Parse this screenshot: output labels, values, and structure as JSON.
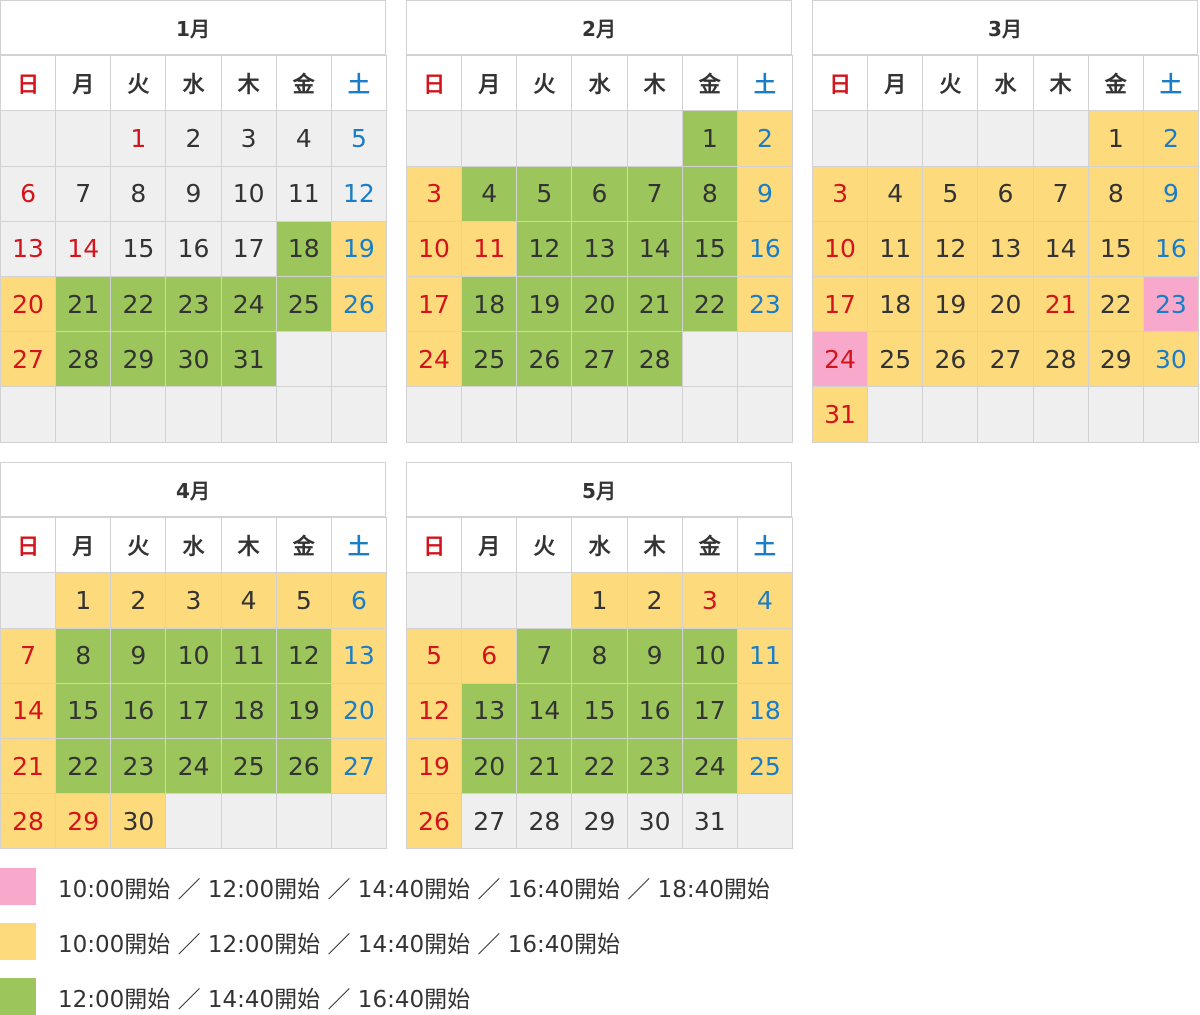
{
  "palette": {
    "gray": "#efefef",
    "yellow": "#fdda7c",
    "green": "#9cc65c",
    "pink": "#f7a8cb",
    "red": "#d2141c",
    "blue": "#1b7dc6",
    "dark": "#333333"
  },
  "weekdays": [
    "日",
    "月",
    "火",
    "水",
    "木",
    "金",
    "土"
  ],
  "weekday_fg": [
    "red",
    "dark",
    "dark",
    "dark",
    "dark",
    "dark",
    "blue"
  ],
  "months": [
    {
      "title": "1月",
      "weeks": [
        [
          null,
          null,
          [
            1,
            "gray",
            "red"
          ],
          [
            2,
            "gray",
            "dark"
          ],
          [
            3,
            "gray",
            "dark"
          ],
          [
            4,
            "gray",
            "dark"
          ],
          [
            5,
            "gray",
            "blue"
          ]
        ],
        [
          [
            6,
            "gray",
            "red"
          ],
          [
            7,
            "gray",
            "dark"
          ],
          [
            8,
            "gray",
            "dark"
          ],
          [
            9,
            "gray",
            "dark"
          ],
          [
            10,
            "gray",
            "dark"
          ],
          [
            11,
            "gray",
            "dark"
          ],
          [
            12,
            "gray",
            "blue"
          ]
        ],
        [
          [
            13,
            "gray",
            "red"
          ],
          [
            14,
            "gray",
            "red"
          ],
          [
            15,
            "gray",
            "dark"
          ],
          [
            16,
            "gray",
            "dark"
          ],
          [
            17,
            "gray",
            "dark"
          ],
          [
            18,
            "green",
            "dark"
          ],
          [
            19,
            "yellow",
            "blue"
          ]
        ],
        [
          [
            20,
            "yellow",
            "red"
          ],
          [
            21,
            "green",
            "dark"
          ],
          [
            22,
            "green",
            "dark"
          ],
          [
            23,
            "green",
            "dark"
          ],
          [
            24,
            "green",
            "dark"
          ],
          [
            25,
            "green",
            "dark"
          ],
          [
            26,
            "yellow",
            "blue"
          ]
        ],
        [
          [
            27,
            "yellow",
            "red"
          ],
          [
            28,
            "green",
            "dark"
          ],
          [
            29,
            "green",
            "dark"
          ],
          [
            30,
            "green",
            "dark"
          ],
          [
            31,
            "green",
            "dark"
          ],
          null,
          null
        ],
        [
          null,
          null,
          null,
          null,
          null,
          null,
          null
        ]
      ]
    },
    {
      "title": "2月",
      "weeks": [
        [
          null,
          null,
          null,
          null,
          null,
          [
            1,
            "green",
            "dark"
          ],
          [
            2,
            "yellow",
            "blue"
          ]
        ],
        [
          [
            3,
            "yellow",
            "red"
          ],
          [
            4,
            "green",
            "dark"
          ],
          [
            5,
            "green",
            "dark"
          ],
          [
            6,
            "green",
            "dark"
          ],
          [
            7,
            "green",
            "dark"
          ],
          [
            8,
            "green",
            "dark"
          ],
          [
            9,
            "yellow",
            "blue"
          ]
        ],
        [
          [
            10,
            "yellow",
            "red"
          ],
          [
            11,
            "yellow",
            "red"
          ],
          [
            12,
            "green",
            "dark"
          ],
          [
            13,
            "green",
            "dark"
          ],
          [
            14,
            "green",
            "dark"
          ],
          [
            15,
            "green",
            "dark"
          ],
          [
            16,
            "yellow",
            "blue"
          ]
        ],
        [
          [
            17,
            "yellow",
            "red"
          ],
          [
            18,
            "green",
            "dark"
          ],
          [
            19,
            "green",
            "dark"
          ],
          [
            20,
            "green",
            "dark"
          ],
          [
            21,
            "green",
            "dark"
          ],
          [
            22,
            "green",
            "dark"
          ],
          [
            23,
            "yellow",
            "blue"
          ]
        ],
        [
          [
            24,
            "yellow",
            "red"
          ],
          [
            25,
            "green",
            "dark"
          ],
          [
            26,
            "green",
            "dark"
          ],
          [
            27,
            "green",
            "dark"
          ],
          [
            28,
            "green",
            "dark"
          ],
          null,
          null
        ],
        [
          null,
          null,
          null,
          null,
          null,
          null,
          null
        ]
      ]
    },
    {
      "title": "3月",
      "weeks": [
        [
          null,
          null,
          null,
          null,
          null,
          [
            1,
            "yellow",
            "dark"
          ],
          [
            2,
            "yellow",
            "blue"
          ]
        ],
        [
          [
            3,
            "yellow",
            "red"
          ],
          [
            4,
            "yellow",
            "dark"
          ],
          [
            5,
            "yellow",
            "dark"
          ],
          [
            6,
            "yellow",
            "dark"
          ],
          [
            7,
            "yellow",
            "dark"
          ],
          [
            8,
            "yellow",
            "dark"
          ],
          [
            9,
            "yellow",
            "blue"
          ]
        ],
        [
          [
            10,
            "yellow",
            "red"
          ],
          [
            11,
            "yellow",
            "dark"
          ],
          [
            12,
            "yellow",
            "dark"
          ],
          [
            13,
            "yellow",
            "dark"
          ],
          [
            14,
            "yellow",
            "dark"
          ],
          [
            15,
            "yellow",
            "dark"
          ],
          [
            16,
            "yellow",
            "blue"
          ]
        ],
        [
          [
            17,
            "yellow",
            "red"
          ],
          [
            18,
            "yellow",
            "dark"
          ],
          [
            19,
            "yellow",
            "dark"
          ],
          [
            20,
            "yellow",
            "dark"
          ],
          [
            21,
            "yellow",
            "red"
          ],
          [
            22,
            "yellow",
            "dark"
          ],
          [
            23,
            "pink",
            "blue"
          ]
        ],
        [
          [
            24,
            "pink",
            "red"
          ],
          [
            25,
            "yellow",
            "dark"
          ],
          [
            26,
            "yellow",
            "dark"
          ],
          [
            27,
            "yellow",
            "dark"
          ],
          [
            28,
            "yellow",
            "dark"
          ],
          [
            29,
            "yellow",
            "dark"
          ],
          [
            30,
            "yellow",
            "blue"
          ]
        ],
        [
          [
            31,
            "yellow",
            "red"
          ],
          null,
          null,
          null,
          null,
          null,
          null
        ]
      ]
    },
    {
      "title": "4月",
      "weeks": [
        [
          null,
          [
            1,
            "yellow",
            "dark"
          ],
          [
            2,
            "yellow",
            "dark"
          ],
          [
            3,
            "yellow",
            "dark"
          ],
          [
            4,
            "yellow",
            "dark"
          ],
          [
            5,
            "yellow",
            "dark"
          ],
          [
            6,
            "yellow",
            "blue"
          ]
        ],
        [
          [
            7,
            "yellow",
            "red"
          ],
          [
            8,
            "green",
            "dark"
          ],
          [
            9,
            "green",
            "dark"
          ],
          [
            10,
            "green",
            "dark"
          ],
          [
            11,
            "green",
            "dark"
          ],
          [
            12,
            "green",
            "dark"
          ],
          [
            13,
            "yellow",
            "blue"
          ]
        ],
        [
          [
            14,
            "yellow",
            "red"
          ],
          [
            15,
            "green",
            "dark"
          ],
          [
            16,
            "green",
            "dark"
          ],
          [
            17,
            "green",
            "dark"
          ],
          [
            18,
            "green",
            "dark"
          ],
          [
            19,
            "green",
            "dark"
          ],
          [
            20,
            "yellow",
            "blue"
          ]
        ],
        [
          [
            21,
            "yellow",
            "red"
          ],
          [
            22,
            "green",
            "dark"
          ],
          [
            23,
            "green",
            "dark"
          ],
          [
            24,
            "green",
            "dark"
          ],
          [
            25,
            "green",
            "dark"
          ],
          [
            26,
            "green",
            "dark"
          ],
          [
            27,
            "yellow",
            "blue"
          ]
        ],
        [
          [
            28,
            "yellow",
            "red"
          ],
          [
            29,
            "yellow",
            "red"
          ],
          [
            30,
            "yellow",
            "dark"
          ],
          null,
          null,
          null,
          null
        ]
      ]
    },
    {
      "title": "5月",
      "weeks": [
        [
          null,
          null,
          null,
          [
            1,
            "yellow",
            "dark"
          ],
          [
            2,
            "yellow",
            "dark"
          ],
          [
            3,
            "yellow",
            "red"
          ],
          [
            4,
            "yellow",
            "blue"
          ]
        ],
        [
          [
            5,
            "yellow",
            "red"
          ],
          [
            6,
            "yellow",
            "red"
          ],
          [
            7,
            "green",
            "dark"
          ],
          [
            8,
            "green",
            "dark"
          ],
          [
            9,
            "green",
            "dark"
          ],
          [
            10,
            "green",
            "dark"
          ],
          [
            11,
            "yellow",
            "blue"
          ]
        ],
        [
          [
            12,
            "yellow",
            "red"
          ],
          [
            13,
            "green",
            "dark"
          ],
          [
            14,
            "green",
            "dark"
          ],
          [
            15,
            "green",
            "dark"
          ],
          [
            16,
            "green",
            "dark"
          ],
          [
            17,
            "green",
            "dark"
          ],
          [
            18,
            "yellow",
            "blue"
          ]
        ],
        [
          [
            19,
            "yellow",
            "red"
          ],
          [
            20,
            "green",
            "dark"
          ],
          [
            21,
            "green",
            "dark"
          ],
          [
            22,
            "green",
            "dark"
          ],
          [
            23,
            "green",
            "dark"
          ],
          [
            24,
            "green",
            "dark"
          ],
          [
            25,
            "yellow",
            "blue"
          ]
        ],
        [
          [
            26,
            "yellow",
            "red"
          ],
          [
            27,
            "gray",
            "dark"
          ],
          [
            28,
            "gray",
            "dark"
          ],
          [
            29,
            "gray",
            "dark"
          ],
          [
            30,
            "gray",
            "dark"
          ],
          [
            31,
            "gray",
            "dark"
          ],
          null
        ]
      ]
    }
  ],
  "legend": [
    {
      "color": "pink",
      "text": "10:00開始 ／ 12:00開始 ／ 14:40開始 ／ 16:40開始 ／ 18:40開始"
    },
    {
      "color": "yellow",
      "text": "10:00開始 ／ 12:00開始 ／ 14:40開始 ／ 16:40開始"
    },
    {
      "color": "green",
      "text": "12:00開始 ／ 14:40開始 ／ 16:40開始"
    }
  ]
}
